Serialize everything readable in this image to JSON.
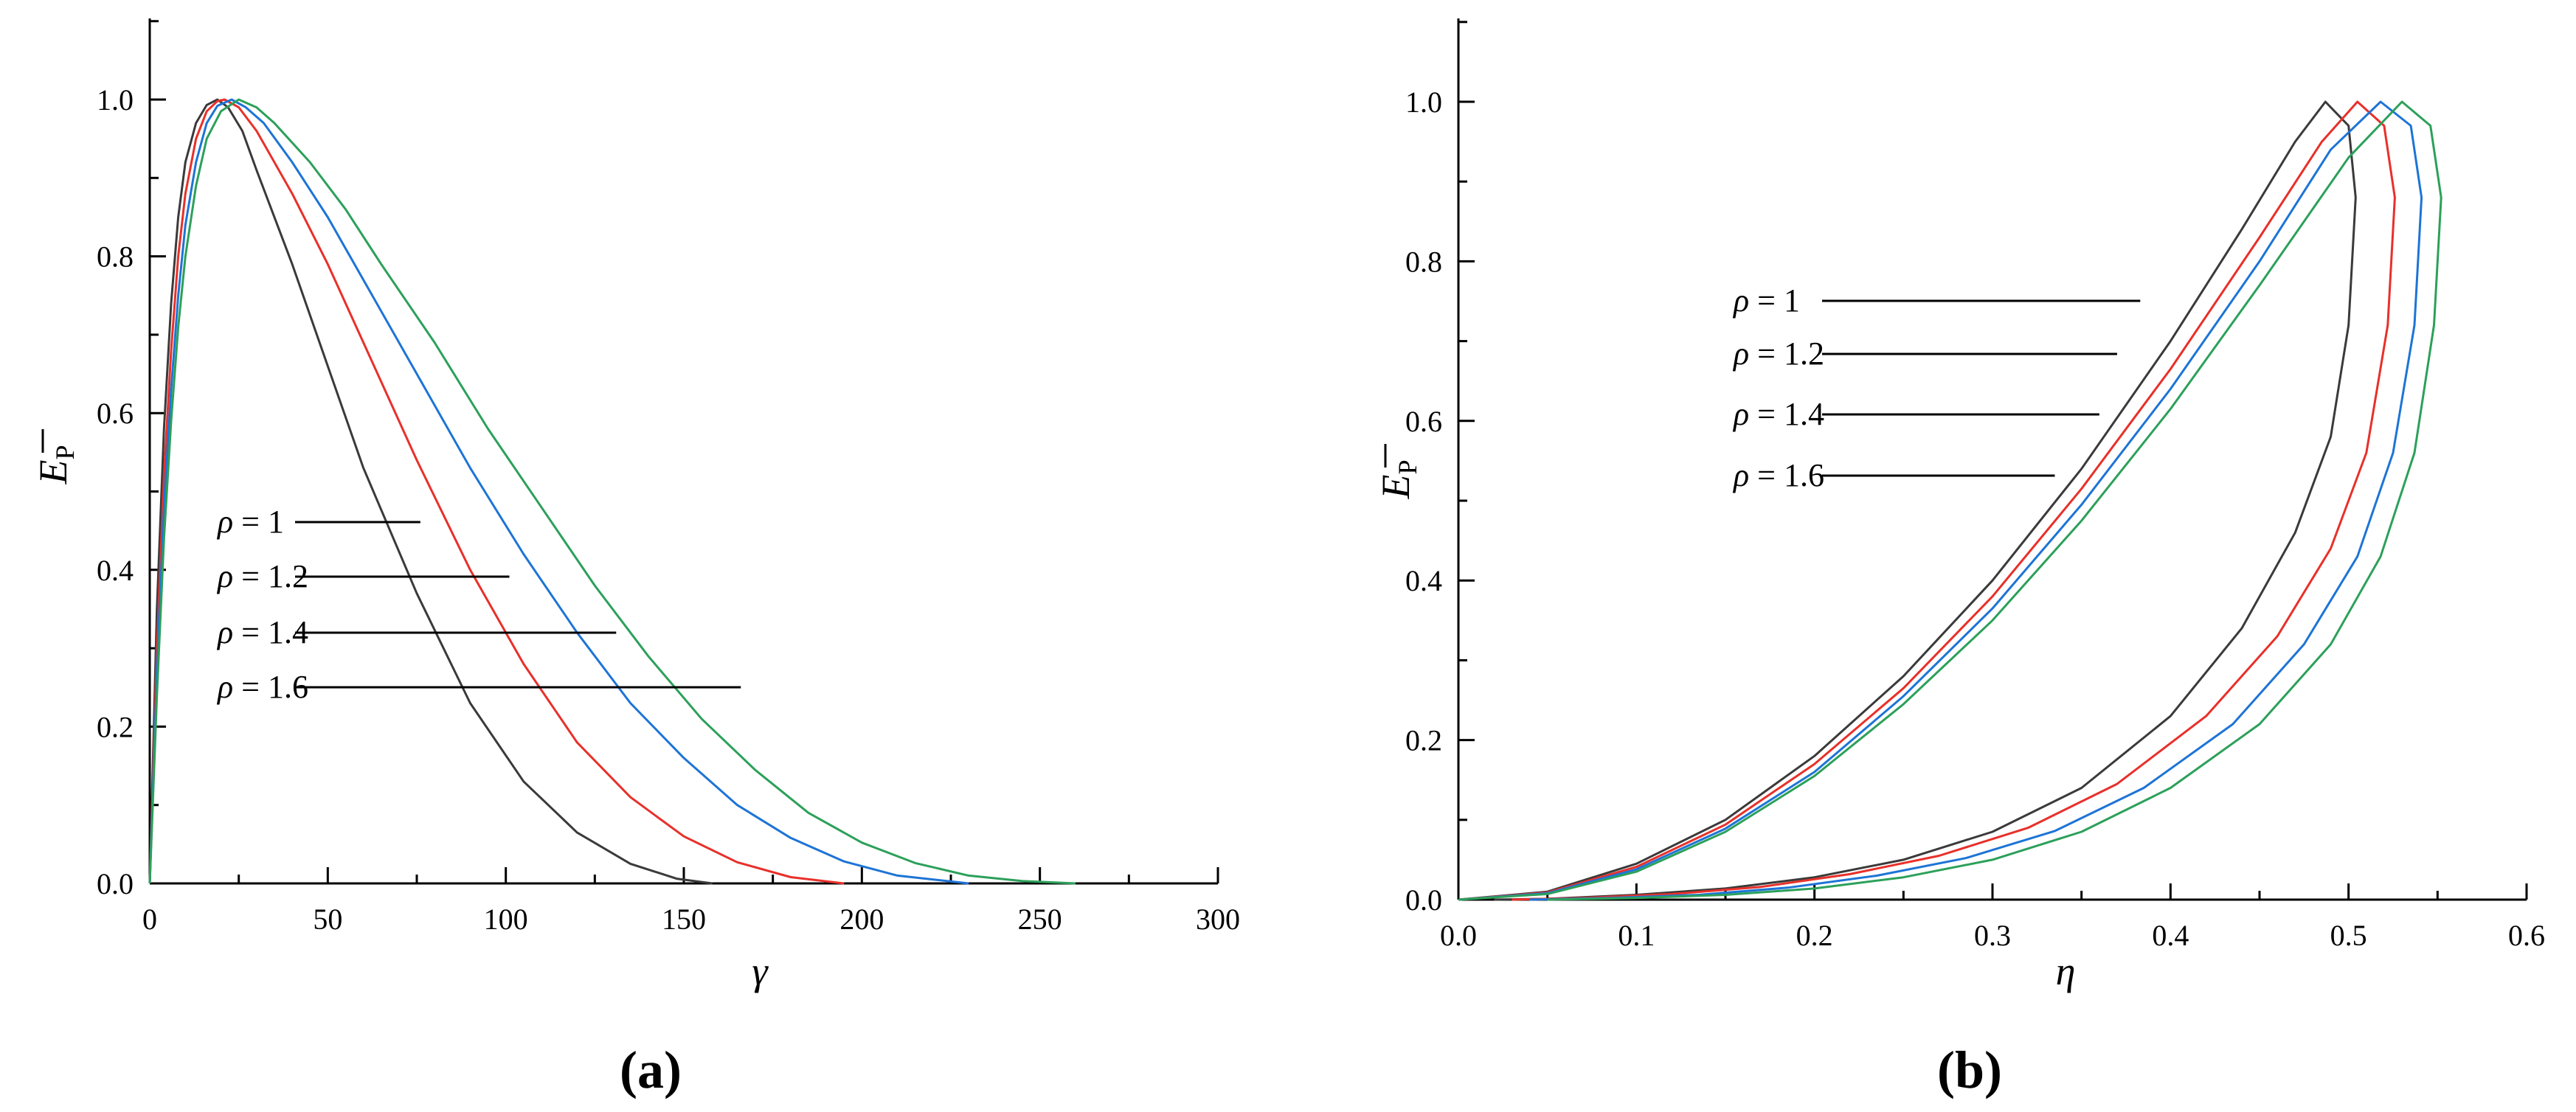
{
  "panels": {
    "a": {
      "label_open": "(",
      "label_letter": "a",
      "label_close": ")",
      "xlabel": "γ",
      "ylabel_main": "E",
      "ylabel_sub": "P",
      "legend": [
        "ρ = 1",
        "ρ = 1.2",
        "ρ = 1.4",
        "ρ = 1.6"
      ]
    },
    "b": {
      "label_open": "(",
      "label_letter": "b",
      "label_close": ")",
      "xlabel": "η",
      "ylabel_main": "E",
      "ylabel_sub": "P",
      "legend": [
        "ρ = 1",
        "ρ = 1.2",
        "ρ = 1.4",
        "ρ = 1.6"
      ]
    }
  },
  "chart_data": [
    {
      "type": "line",
      "panel": "a",
      "xlabel": "γ",
      "ylabel": "E̅P",
      "xlim": [
        0,
        300
      ],
      "ylim": [
        0,
        1.0
      ],
      "xticks": [
        "0",
        "50",
        "100",
        "150",
        "200",
        "250",
        "300"
      ],
      "yticks": [
        "0.0",
        "0.2",
        "0.4",
        "0.6",
        "0.8",
        "1.0"
      ],
      "grid": false,
      "legend_position": "center-left",
      "series": [
        {
          "name": "ρ = 1",
          "color": "#3a3a3a",
          "points": [
            [
              0,
              0
            ],
            [
              2,
              0.35
            ],
            [
              4,
              0.58
            ],
            [
              6,
              0.74
            ],
            [
              8,
              0.85
            ],
            [
              10,
              0.92
            ],
            [
              13,
              0.97
            ],
            [
              16,
              0.993
            ],
            [
              19,
              1.0
            ],
            [
              22,
              0.99
            ],
            [
              26,
              0.96
            ],
            [
              30,
              0.91
            ],
            [
              40,
              0.79
            ],
            [
              50,
              0.66
            ],
            [
              60,
              0.53
            ],
            [
              75,
              0.37
            ],
            [
              90,
              0.23
            ],
            [
              105,
              0.13
            ],
            [
              120,
              0.065
            ],
            [
              135,
              0.025
            ],
            [
              148,
              0.006
            ],
            [
              158,
              0.0
            ]
          ]
        },
        {
          "name": "ρ = 1.2",
          "color": "#e8302a",
          "points": [
            [
              0,
              0
            ],
            [
              2,
              0.3
            ],
            [
              4,
              0.52
            ],
            [
              6,
              0.68
            ],
            [
              8,
              0.8
            ],
            [
              10,
              0.88
            ],
            [
              13,
              0.95
            ],
            [
              16,
              0.985
            ],
            [
              19,
              0.998
            ],
            [
              21,
              1.0
            ],
            [
              25,
              0.99
            ],
            [
              30,
              0.96
            ],
            [
              40,
              0.88
            ],
            [
              50,
              0.79
            ],
            [
              60,
              0.69
            ],
            [
              75,
              0.54
            ],
            [
              90,
              0.4
            ],
            [
              105,
              0.28
            ],
            [
              120,
              0.18
            ],
            [
              135,
              0.11
            ],
            [
              150,
              0.06
            ],
            [
              165,
              0.027
            ],
            [
              180,
              0.008
            ],
            [
              195,
              0.0
            ]
          ]
        },
        {
          "name": "ρ = 1.4",
          "color": "#1d74d6",
          "points": [
            [
              0,
              0
            ],
            [
              2,
              0.27
            ],
            [
              4,
              0.48
            ],
            [
              6,
              0.63
            ],
            [
              8,
              0.75
            ],
            [
              10,
              0.84
            ],
            [
              13,
              0.92
            ],
            [
              16,
              0.97
            ],
            [
              19,
              0.992
            ],
            [
              23,
              1.0
            ],
            [
              27,
              0.99
            ],
            [
              32,
              0.97
            ],
            [
              40,
              0.92
            ],
            [
              50,
              0.85
            ],
            [
              60,
              0.77
            ],
            [
              75,
              0.65
            ],
            [
              90,
              0.53
            ],
            [
              105,
              0.42
            ],
            [
              120,
              0.32
            ],
            [
              135,
              0.23
            ],
            [
              150,
              0.16
            ],
            [
              165,
              0.1
            ],
            [
              180,
              0.058
            ],
            [
              195,
              0.028
            ],
            [
              210,
              0.01
            ],
            [
              230,
              0.0
            ]
          ]
        },
        {
          "name": "ρ = 1.6",
          "color": "#2ca05a",
          "points": [
            [
              0,
              0
            ],
            [
              2,
              0.24
            ],
            [
              4,
              0.44
            ],
            [
              6,
              0.59
            ],
            [
              8,
              0.71
            ],
            [
              10,
              0.8
            ],
            [
              13,
              0.89
            ],
            [
              16,
              0.95
            ],
            [
              20,
              0.985
            ],
            [
              25,
              1.0
            ],
            [
              30,
              0.99
            ],
            [
              35,
              0.97
            ],
            [
              45,
              0.92
            ],
            [
              55,
              0.86
            ],
            [
              65,
              0.79
            ],
            [
              80,
              0.69
            ],
            [
              95,
              0.58
            ],
            [
              110,
              0.48
            ],
            [
              125,
              0.38
            ],
            [
              140,
              0.29
            ],
            [
              155,
              0.21
            ],
            [
              170,
              0.145
            ],
            [
              185,
              0.09
            ],
            [
              200,
              0.052
            ],
            [
              215,
              0.026
            ],
            [
              230,
              0.01
            ],
            [
              245,
              0.003
            ],
            [
              260,
              0.0
            ]
          ]
        }
      ]
    },
    {
      "type": "line",
      "panel": "b",
      "xlabel": "η",
      "ylabel": "E̅P",
      "xlim": [
        0,
        0.6
      ],
      "ylim": [
        0,
        1.0
      ],
      "xticks": [
        "0.0",
        "0.1",
        "0.2",
        "0.3",
        "0.4",
        "0.5",
        "0.6"
      ],
      "yticks": [
        "0.0",
        "0.2",
        "0.4",
        "0.6",
        "0.8",
        "1.0"
      ],
      "grid": false,
      "legend_position": "upper-center",
      "series": [
        {
          "name": "ρ = 1",
          "color": "#3a3a3a",
          "points": [
            [
              0,
              0
            ],
            [
              0.05,
              0.01
            ],
            [
              0.1,
              0.045
            ],
            [
              0.15,
              0.1
            ],
            [
              0.2,
              0.18
            ],
            [
              0.25,
              0.28
            ],
            [
              0.3,
              0.4
            ],
            [
              0.35,
              0.54
            ],
            [
              0.4,
              0.7
            ],
            [
              0.44,
              0.84
            ],
            [
              0.47,
              0.95
            ],
            [
              0.487,
              1.0
            ],
            [
              0.5,
              0.97
            ],
            [
              0.504,
              0.88
            ],
            [
              0.5,
              0.72
            ],
            [
              0.49,
              0.58
            ],
            [
              0.47,
              0.46
            ],
            [
              0.44,
              0.34
            ],
            [
              0.4,
              0.23
            ],
            [
              0.35,
              0.14
            ],
            [
              0.3,
              0.085
            ],
            [
              0.25,
              0.05
            ],
            [
              0.2,
              0.028
            ],
            [
              0.15,
              0.014
            ],
            [
              0.1,
              0.006
            ],
            [
              0.05,
              0.001
            ],
            [
              0.02,
              0.0
            ]
          ]
        },
        {
          "name": "ρ = 1.2",
          "color": "#e8302a",
          "points": [
            [
              0,
              0
            ],
            [
              0.05,
              0.009
            ],
            [
              0.1,
              0.041
            ],
            [
              0.15,
              0.094
            ],
            [
              0.2,
              0.17
            ],
            [
              0.25,
              0.265
            ],
            [
              0.3,
              0.38
            ],
            [
              0.35,
              0.515
            ],
            [
              0.4,
              0.665
            ],
            [
              0.45,
              0.83
            ],
            [
              0.485,
              0.95
            ],
            [
              0.505,
              1.0
            ],
            [
              0.52,
              0.97
            ],
            [
              0.526,
              0.88
            ],
            [
              0.522,
              0.72
            ],
            [
              0.51,
              0.56
            ],
            [
              0.49,
              0.44
            ],
            [
              0.46,
              0.33
            ],
            [
              0.42,
              0.23
            ],
            [
              0.37,
              0.145
            ],
            [
              0.32,
              0.09
            ],
            [
              0.27,
              0.055
            ],
            [
              0.22,
              0.032
            ],
            [
              0.17,
              0.016
            ],
            [
              0.12,
              0.007
            ],
            [
              0.07,
              0.002
            ],
            [
              0.03,
              0.0
            ]
          ]
        },
        {
          "name": "ρ = 1.4",
          "color": "#1d74d6",
          "points": [
            [
              0,
              0
            ],
            [
              0.05,
              0.008
            ],
            [
              0.1,
              0.038
            ],
            [
              0.15,
              0.089
            ],
            [
              0.2,
              0.16
            ],
            [
              0.25,
              0.255
            ],
            [
              0.3,
              0.365
            ],
            [
              0.35,
              0.495
            ],
            [
              0.4,
              0.64
            ],
            [
              0.45,
              0.8
            ],
            [
              0.49,
              0.94
            ],
            [
              0.518,
              1.0
            ],
            [
              0.535,
              0.97
            ],
            [
              0.541,
              0.88
            ],
            [
              0.537,
              0.72
            ],
            [
              0.525,
              0.56
            ],
            [
              0.505,
              0.43
            ],
            [
              0.475,
              0.32
            ],
            [
              0.435,
              0.22
            ],
            [
              0.385,
              0.14
            ],
            [
              0.335,
              0.086
            ],
            [
              0.285,
              0.052
            ],
            [
              0.235,
              0.03
            ],
            [
              0.185,
              0.015
            ],
            [
              0.135,
              0.006
            ],
            [
              0.085,
              0.002
            ],
            [
              0.04,
              0.0
            ]
          ]
        },
        {
          "name": "ρ = 1.6",
          "color": "#2ca05a",
          "points": [
            [
              0,
              0
            ],
            [
              0.05,
              0.007
            ],
            [
              0.1,
              0.035
            ],
            [
              0.15,
              0.085
            ],
            [
              0.2,
              0.155
            ],
            [
              0.25,
              0.245
            ],
            [
              0.3,
              0.35
            ],
            [
              0.35,
              0.475
            ],
            [
              0.4,
              0.615
            ],
            [
              0.45,
              0.77
            ],
            [
              0.5,
              0.93
            ],
            [
              0.53,
              1.0
            ],
            [
              0.546,
              0.97
            ],
            [
              0.552,
              0.88
            ],
            [
              0.548,
              0.72
            ],
            [
              0.537,
              0.56
            ],
            [
              0.518,
              0.43
            ],
            [
              0.49,
              0.32
            ],
            [
              0.45,
              0.22
            ],
            [
              0.4,
              0.14
            ],
            [
              0.35,
              0.085
            ],
            [
              0.3,
              0.05
            ],
            [
              0.25,
              0.028
            ],
            [
              0.2,
              0.014
            ],
            [
              0.15,
              0.006
            ],
            [
              0.1,
              0.002
            ],
            [
              0.05,
              0.0
            ]
          ]
        }
      ]
    }
  ]
}
